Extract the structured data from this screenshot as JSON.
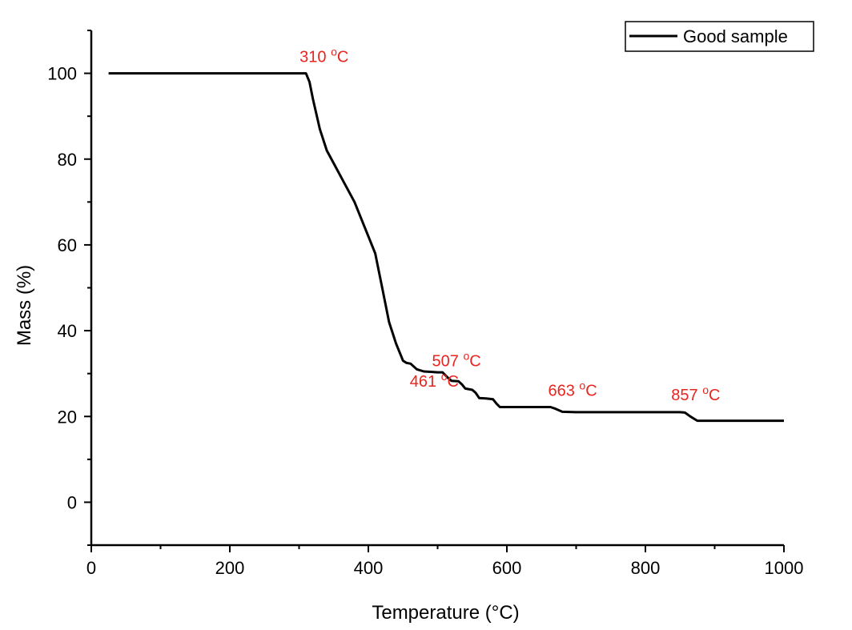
{
  "chart_data": {
    "type": "line",
    "title": "",
    "xlabel": "Temperature (°C)",
    "ylabel": "Mass (%)",
    "xlim": [
      0,
      1000
    ],
    "ylim": [
      -10,
      110
    ],
    "xticks": [
      "0",
      "200",
      "400",
      "600",
      "800",
      "1000"
    ],
    "yticks": [
      "0",
      "20",
      "40",
      "60",
      "80",
      "100"
    ],
    "grid": false,
    "legend_position": "top-right",
    "series": [
      {
        "name": "Good sample",
        "color": "#000000",
        "x": [
          25,
          100,
          200,
          300,
          305,
          310,
          315,
          320,
          330,
          340,
          350,
          360,
          380,
          400,
          410,
          420,
          430,
          440,
          450,
          455,
          461,
          470,
          480,
          490,
          500,
          507,
          515,
          520,
          530,
          535,
          540,
          550,
          555,
          560,
          570,
          580,
          585,
          590,
          600,
          620,
          640,
          663,
          670,
          680,
          700,
          750,
          800,
          850,
          857,
          865,
          875,
          900,
          950,
          1000
        ],
        "y": [
          100,
          100,
          100,
          100,
          100,
          100,
          98,
          94,
          87,
          82,
          79,
          76,
          70,
          62,
          58,
          50,
          42,
          37,
          33,
          32.5,
          32.3,
          31,
          30.5,
          30.4,
          30.3,
          30.3,
          29,
          28.3,
          28.2,
          27.5,
          26.5,
          26.2,
          25.5,
          24.3,
          24.2,
          24,
          23,
          22.2,
          22.2,
          22.2,
          22.2,
          22.2,
          21.8,
          21.1,
          21,
          21,
          21,
          21,
          20.9,
          20,
          19,
          19,
          19,
          19
        ]
      }
    ],
    "annotations": [
      {
        "text": "310 ",
        "sup": "o",
        "unit": "C",
        "x": 310,
        "y": 100
      },
      {
        "text": "461 ",
        "sup": "o",
        "unit": "C",
        "x": 461,
        "y": 32
      },
      {
        "text": "507 ",
        "sup": "o",
        "unit": "C",
        "x": 507,
        "y": 30
      },
      {
        "text": "663 ",
        "sup": "o",
        "unit": "C",
        "x": 663,
        "y": 22
      },
      {
        "text": "857 ",
        "sup": "o",
        "unit": "C",
        "x": 857,
        "y": 21
      }
    ],
    "annotation_color": "#e8251e"
  }
}
